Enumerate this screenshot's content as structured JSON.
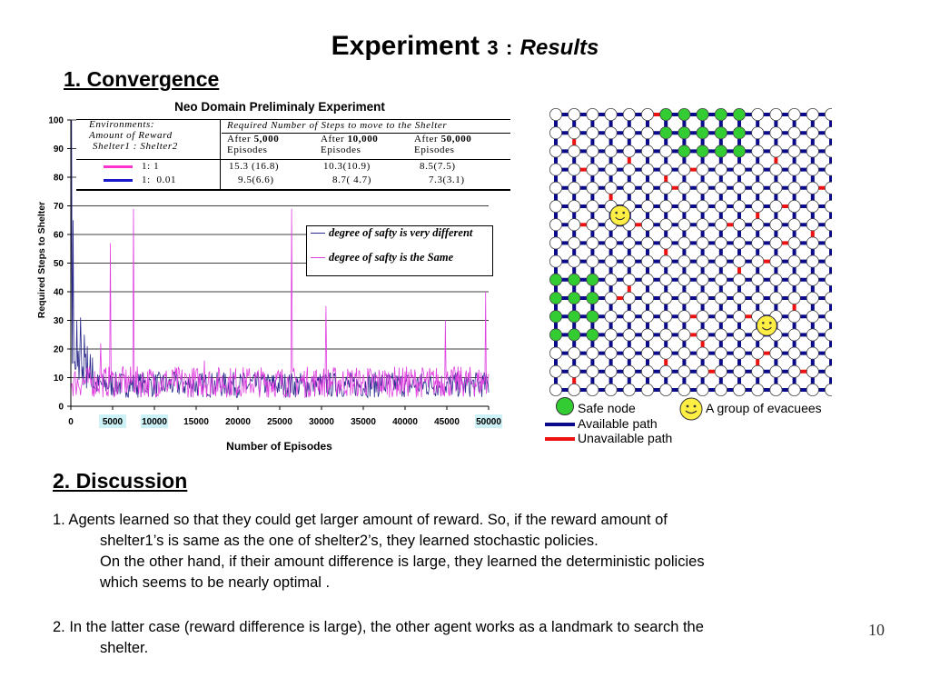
{
  "slide": {
    "title_main": "Experiment",
    "title_number": "3",
    "title_sep": ":",
    "title_sub": "Results",
    "section1": "1. Convergence",
    "section2": "2. Discussion",
    "page_number": "10"
  },
  "chart_data": {
    "type": "line",
    "title": "Neo Domain Preliminaly Experiment",
    "xlabel": "Number of Episodes",
    "ylabel": "Required Steps to Shelter",
    "xlim": [
      0,
      50000
    ],
    "ylim": [
      0,
      100
    ],
    "xticks": [
      "0",
      "5000",
      "10000",
      "15000",
      "20000",
      "25000",
      "30000",
      "35000",
      "40000",
      "45000",
      "50000"
    ],
    "highlighted_xticks": [
      "5000",
      "10000",
      "50000"
    ],
    "yticks": [
      "0",
      "10",
      "20",
      "30",
      "40",
      "50",
      "60",
      "70",
      "80",
      "90",
      "100"
    ],
    "grid": true,
    "legend_position": "center-right",
    "series": [
      {
        "name": "degree of safty is very different",
        "color": "#2a2a8c",
        "peaks": [
          [
            100,
            100
          ],
          [
            300,
            65
          ],
          [
            700,
            30
          ],
          [
            1200,
            31
          ],
          [
            1600,
            25
          ],
          [
            2000,
            21
          ],
          [
            2600,
            17
          ]
        ],
        "baseline": [
          3,
          12
        ]
      },
      {
        "name": "degree of safty is the Same",
        "color": "#e040e0",
        "peaks": [
          [
            4700,
            57
          ],
          [
            7500,
            69
          ],
          [
            26400,
            69
          ],
          [
            30500,
            35
          ],
          [
            44800,
            30
          ],
          [
            49600,
            40
          ],
          [
            3600,
            22
          ],
          [
            16000,
            16
          ]
        ],
        "baseline": [
          3,
          14
        ]
      }
    ],
    "table": {
      "header_env": [
        "Environments:",
        "Amount of Reward",
        "Shelter1 : Shelter2"
      ],
      "header_steps": "Required Number of Steps to move to the Shelter",
      "columns": [
        {
          "label": "After",
          "bold": "5,000",
          "unit": "Episodes"
        },
        {
          "label": "After",
          "bold": "10,000",
          "unit": "Episodes"
        },
        {
          "label": "After",
          "bold": "50,000",
          "unit": "Episodes"
        }
      ],
      "rows": [
        {
          "ratio": "1: 1",
          "color": "#ff33cc",
          "values": [
            "15.3 (16.8)",
            "10.3(10.9)",
            "8.5(7.5)"
          ]
        },
        {
          "ratio": "1:  0.01",
          "color": "#1a1acc",
          "values": [
            "9.5(6.6)",
            "8.7( 4.7)",
            "7.3(3.1)"
          ]
        }
      ]
    }
  },
  "grid_map": {
    "cols": 16,
    "rows": 16,
    "safe_node_color": "#33cc33",
    "node_color": "#ffffff",
    "available_color": "#0a0a8a",
    "unavailable_color": "#ee1111",
    "safe_nodes": [
      [
        0,
        6
      ],
      [
        0,
        7
      ],
      [
        0,
        8
      ],
      [
        0,
        9
      ],
      [
        0,
        10
      ],
      [
        1,
        6
      ],
      [
        1,
        7
      ],
      [
        1,
        8
      ],
      [
        1,
        9
      ],
      [
        1,
        10
      ],
      [
        2,
        7
      ],
      [
        2,
        8
      ],
      [
        2,
        9
      ],
      [
        2,
        10
      ],
      [
        9,
        0
      ],
      [
        9,
        1
      ],
      [
        9,
        2
      ],
      [
        10,
        0
      ],
      [
        10,
        1
      ],
      [
        10,
        2
      ],
      [
        11,
        0
      ],
      [
        11,
        1
      ],
      [
        11,
        2
      ],
      [
        12,
        0
      ],
      [
        12,
        1
      ],
      [
        12,
        2
      ]
    ],
    "evacuees": [
      [
        5,
        3
      ],
      [
        11,
        11
      ]
    ],
    "red_h": [
      [
        0,
        5
      ],
      [
        3,
        1
      ],
      [
        3,
        7
      ],
      [
        4,
        6
      ],
      [
        4,
        14
      ],
      [
        5,
        12
      ],
      [
        6,
        1
      ],
      [
        6,
        4
      ],
      [
        6,
        9
      ],
      [
        7,
        12
      ],
      [
        8,
        11
      ],
      [
        10,
        3
      ],
      [
        11,
        7
      ],
      [
        11,
        10
      ],
      [
        12,
        7
      ],
      [
        13,
        11
      ],
      [
        14,
        8
      ],
      [
        14,
        13
      ]
    ],
    "red_v": [
      [
        1,
        1
      ],
      [
        2,
        4
      ],
      [
        2,
        12
      ],
      [
        3,
        6
      ],
      [
        4,
        3
      ],
      [
        5,
        11
      ],
      [
        6,
        14
      ],
      [
        7,
        6
      ],
      [
        8,
        10
      ],
      [
        9,
        4
      ],
      [
        10,
        13
      ],
      [
        12,
        8
      ],
      [
        13,
        6
      ],
      [
        13,
        11
      ],
      [
        14,
        1
      ]
    ]
  },
  "map_legend": {
    "safe_node": "Safe node",
    "evacuees": "A group of evacuees",
    "available": "Available path",
    "unavailable": "Unavailable path"
  },
  "discussion": {
    "p1_line1": "1. Agents learned so that they could get larger amount of reward.  So, if  the reward amount of",
    "p1_line2": "shelter1’s is same as the one of  shelter2’s,  they learned stochastic policies.",
    "p1_line3": "On the other hand,  if their amount difference is large, they learned the deterministic policies",
    "p1_line4": "which seems to be nearly optimal .",
    "p2_line1": "2. In the latter case (reward difference is large),  the other agent works as a landmark to search the",
    "p2_line2": "shelter."
  }
}
